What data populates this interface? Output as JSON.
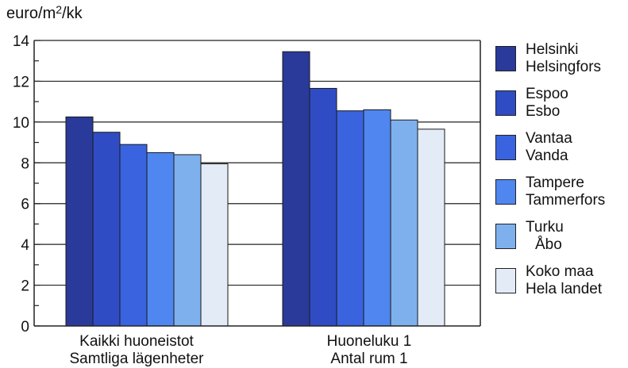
{
  "chart_data": {
    "type": "bar",
    "ylabel_pre": "euro/m",
    "ylabel_sup": "2",
    "ylabel_post": "/kk",
    "ylim": [
      0,
      14
    ],
    "yticks": [
      0,
      2,
      4,
      6,
      8,
      10,
      12,
      14
    ],
    "grid": true,
    "legend_position": "right",
    "categories": [
      {
        "line1": "Kaikki huoneistot",
        "line2": "Samtliga lägenheter"
      },
      {
        "line1": "Huoneluku 1",
        "line2": "Antal rum 1"
      }
    ],
    "series": [
      {
        "name_fi": "Helsinki",
        "name_sv": "Helsingfors",
        "color": "#2a3a9a",
        "values": [
          10.25,
          13.45
        ]
      },
      {
        "name_fi": "Espoo",
        "name_sv": "Esbo",
        "color": "#2f4cc4",
        "values": [
          9.5,
          11.65
        ]
      },
      {
        "name_fi": "Vantaa",
        "name_sv": "Vanda",
        "color": "#3a63e0",
        "values": [
          8.9,
          10.55
        ]
      },
      {
        "name_fi": "Tampere",
        "name_sv": "Tammerfors",
        "color": "#4f86ef",
        "values": [
          8.5,
          10.6
        ]
      },
      {
        "name_fi": "Turku",
        "name_sv": "Åbo",
        "color": "#7fb0ee",
        "values": [
          8.4,
          10.1
        ]
      },
      {
        "name_fi": "Koko maa",
        "name_sv": "Hela landet",
        "color": "#e3ebf6",
        "values": [
          7.95,
          9.65
        ]
      }
    ]
  }
}
